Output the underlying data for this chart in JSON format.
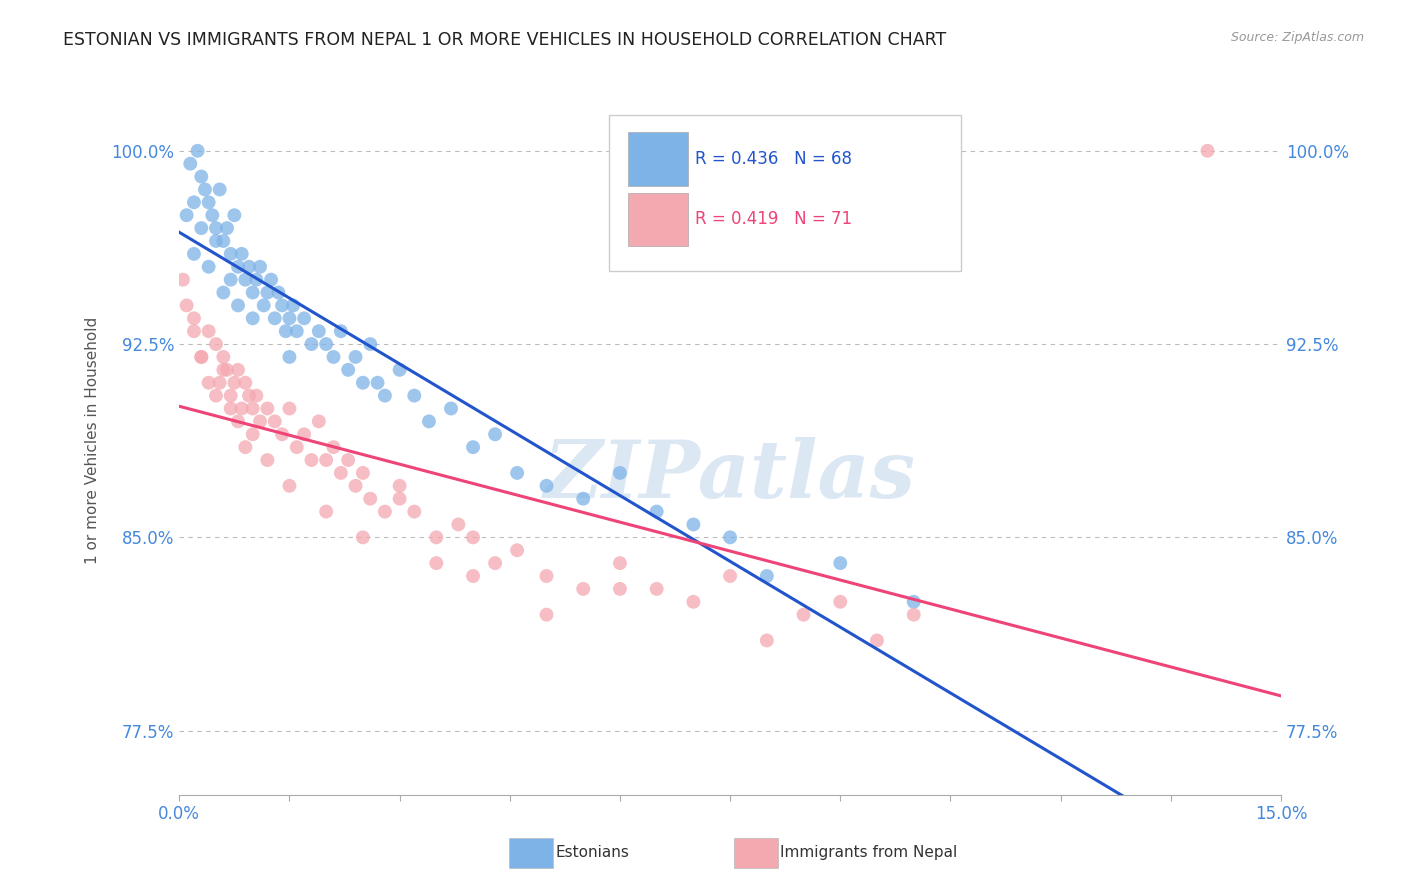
{
  "title": "ESTONIAN VS IMMIGRANTS FROM NEPAL 1 OR MORE VEHICLES IN HOUSEHOLD CORRELATION CHART",
  "source_text": "Source: ZipAtlas.com",
  "ylabel": "1 or more Vehicles in Household",
  "xlim": [
    0.0,
    15.0
  ],
  "ylim": [
    75.0,
    102.5
  ],
  "yticks": [
    77.5,
    85.0,
    92.5,
    100.0
  ],
  "ytick_labels": [
    "77.5%",
    "85.0%",
    "92.5%",
    "100.0%"
  ],
  "xtick_show": [
    0.0,
    15.0
  ],
  "xtick_labels": [
    "0.0%",
    "15.0%"
  ],
  "blue_R": 0.436,
  "blue_N": 68,
  "pink_R": 0.419,
  "pink_N": 71,
  "blue_color": "#7EB3E8",
  "pink_color": "#F4A8B0",
  "blue_line_color": "#2255CC",
  "pink_line_color": "#EE4477",
  "tick_label_color": "#4488DD",
  "legend_label_blue": "Estonians",
  "legend_label_pink": "Immigrants from Nepal",
  "watermark": "ZIPatlas",
  "watermark_color": "#C5D8EE",
  "blue_x": [
    0.1,
    0.15,
    0.2,
    0.25,
    0.3,
    0.35,
    0.4,
    0.45,
    0.5,
    0.55,
    0.6,
    0.65,
    0.7,
    0.75,
    0.8,
    0.85,
    0.9,
    0.95,
    1.0,
    1.05,
    1.1,
    1.15,
    1.2,
    1.25,
    1.3,
    1.35,
    1.4,
    1.45,
    1.5,
    1.55,
    1.6,
    1.7,
    1.8,
    1.9,
    2.0,
    2.1,
    2.2,
    2.3,
    2.4,
    2.5,
    2.6,
    2.7,
    2.8,
    3.0,
    3.2,
    3.4,
    3.7,
    4.0,
    4.3,
    4.6,
    5.0,
    5.5,
    6.0,
    6.5,
    7.0,
    7.5,
    8.0,
    9.0,
    10.0,
    0.2,
    0.3,
    0.4,
    0.5,
    0.6,
    0.7,
    0.8,
    1.0,
    1.5
  ],
  "blue_y": [
    97.5,
    99.5,
    98.0,
    100.0,
    99.0,
    98.5,
    98.0,
    97.5,
    97.0,
    98.5,
    96.5,
    97.0,
    96.0,
    97.5,
    95.5,
    96.0,
    95.0,
    95.5,
    94.5,
    95.0,
    95.5,
    94.0,
    94.5,
    95.0,
    93.5,
    94.5,
    94.0,
    93.0,
    93.5,
    94.0,
    93.0,
    93.5,
    92.5,
    93.0,
    92.5,
    92.0,
    93.0,
    91.5,
    92.0,
    91.0,
    92.5,
    91.0,
    90.5,
    91.5,
    90.5,
    89.5,
    90.0,
    88.5,
    89.0,
    87.5,
    87.0,
    86.5,
    87.5,
    86.0,
    85.5,
    85.0,
    83.5,
    84.0,
    82.5,
    96.0,
    97.0,
    95.5,
    96.5,
    94.5,
    95.0,
    94.0,
    93.5,
    92.0
  ],
  "pink_x": [
    0.05,
    0.1,
    0.2,
    0.3,
    0.4,
    0.5,
    0.55,
    0.6,
    0.65,
    0.7,
    0.75,
    0.8,
    0.85,
    0.9,
    0.95,
    1.0,
    1.05,
    1.1,
    1.2,
    1.3,
    1.4,
    1.5,
    1.6,
    1.7,
    1.8,
    1.9,
    2.0,
    2.1,
    2.2,
    2.3,
    2.4,
    2.5,
    2.6,
    2.8,
    3.0,
    3.2,
    3.5,
    3.8,
    4.0,
    4.3,
    4.6,
    5.0,
    5.5,
    6.0,
    6.5,
    7.0,
    7.5,
    8.0,
    8.5,
    9.0,
    9.5,
    10.0,
    0.2,
    0.3,
    0.4,
    0.5,
    0.6,
    0.7,
    0.8,
    0.9,
    1.0,
    1.2,
    1.5,
    2.0,
    2.5,
    3.0,
    3.5,
    4.0,
    5.0,
    6.0,
    14.0
  ],
  "pink_y": [
    95.0,
    94.0,
    93.5,
    92.0,
    93.0,
    92.5,
    91.0,
    92.0,
    91.5,
    90.5,
    91.0,
    91.5,
    90.0,
    91.0,
    90.5,
    90.0,
    90.5,
    89.5,
    90.0,
    89.5,
    89.0,
    90.0,
    88.5,
    89.0,
    88.0,
    89.5,
    88.0,
    88.5,
    87.5,
    88.0,
    87.0,
    87.5,
    86.5,
    86.0,
    87.0,
    86.0,
    85.0,
    85.5,
    85.0,
    84.0,
    84.5,
    83.5,
    83.0,
    84.0,
    83.0,
    82.5,
    83.5,
    81.0,
    82.0,
    82.5,
    81.0,
    82.0,
    93.0,
    92.0,
    91.0,
    90.5,
    91.5,
    90.0,
    89.5,
    88.5,
    89.0,
    88.0,
    87.0,
    86.0,
    85.0,
    86.5,
    84.0,
    83.5,
    82.0,
    83.0,
    100.0
  ]
}
